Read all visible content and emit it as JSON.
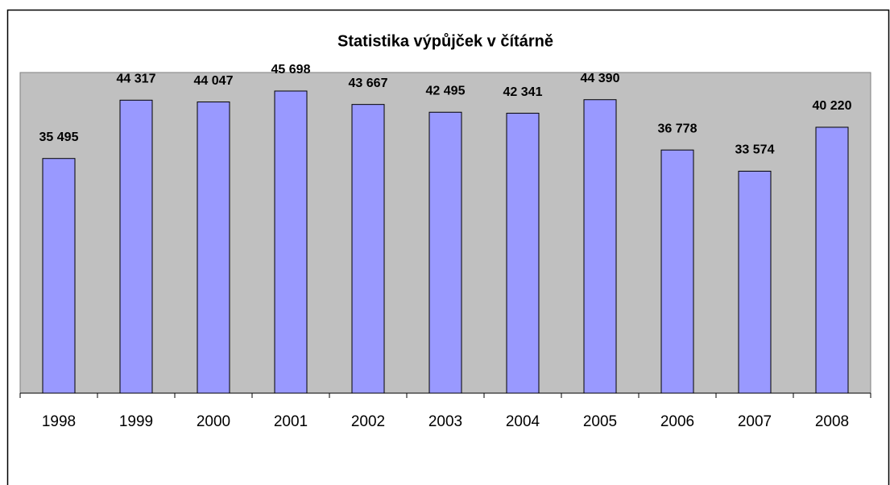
{
  "chart_data": {
    "type": "bar",
    "title": "Statistika výpůjček v čítárně",
    "categories": [
      "1998",
      "1999",
      "2000",
      "2001",
      "2002",
      "2003",
      "2004",
      "2005",
      "2006",
      "2007",
      "2008"
    ],
    "values": [
      35495,
      44317,
      44047,
      45698,
      43667,
      42495,
      42341,
      44390,
      36778,
      33574,
      40220
    ],
    "value_labels": [
      "35 495",
      "44 317",
      "44 047",
      "45 698",
      "43 667",
      "42 495",
      "42 341",
      "44 390",
      "36 778",
      "33 574",
      "40 220"
    ],
    "color": "#9999ff",
    "plot_background": "#c0c0c0",
    "ylim": [
      0,
      48500
    ],
    "grid": false
  }
}
